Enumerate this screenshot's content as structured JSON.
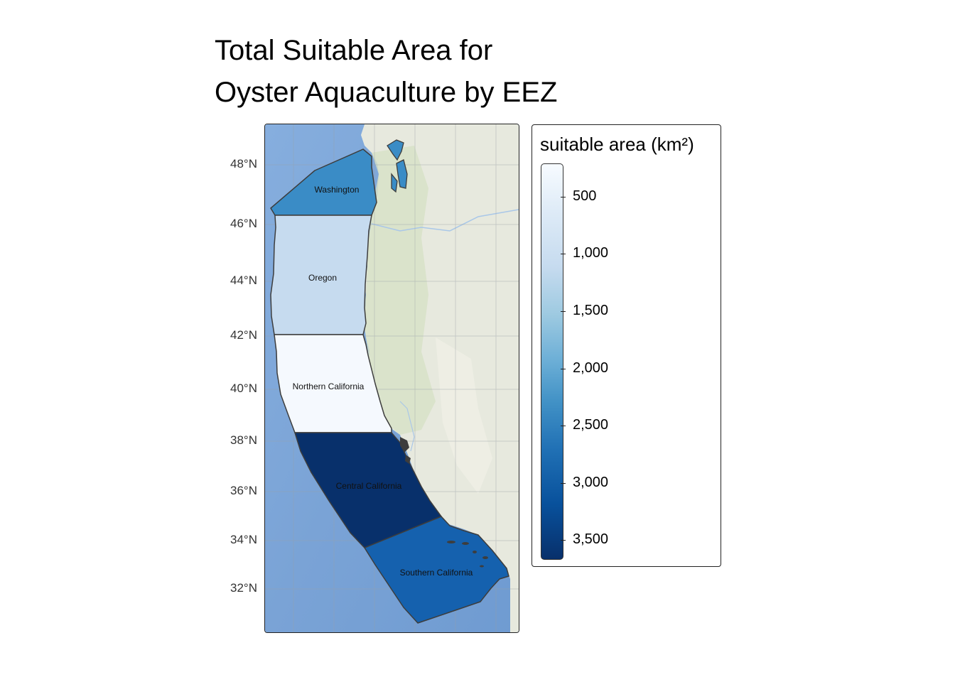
{
  "title_lines": [
    "Total Suitable Area for",
    "Oyster Aquaculture by EEZ"
  ],
  "legend": {
    "title": "suitable area (km²)",
    "ticks": [
      "500",
      "1,000",
      "1,500",
      "2,000",
      "2,500",
      "3,000",
      "3,500"
    ],
    "palette": [
      "#f7fbff",
      "#deebf7",
      "#c6dbef",
      "#9ecae1",
      "#6baed6",
      "#4292c6",
      "#2171b5",
      "#08519c",
      "#08306b"
    ]
  },
  "lat_labels": [
    "48°N",
    "46°N",
    "44°N",
    "42°N",
    "40°N",
    "38°N",
    "36°N",
    "34°N",
    "32°N"
  ],
  "regions": [
    {
      "name": "Washington",
      "fill": "#3a8cc6"
    },
    {
      "name": "Oregon",
      "fill": "#c6dbef"
    },
    {
      "name": "Northern California",
      "fill": "#f5f9fe"
    },
    {
      "name": "Central California",
      "fill": "#08306b"
    },
    {
      "name": "Southern California",
      "fill": "#1561ae"
    }
  ],
  "colors": {
    "ocean": "#7ea7d8",
    "land": "#e6e8dc",
    "border": "#3d3d3d"
  }
}
